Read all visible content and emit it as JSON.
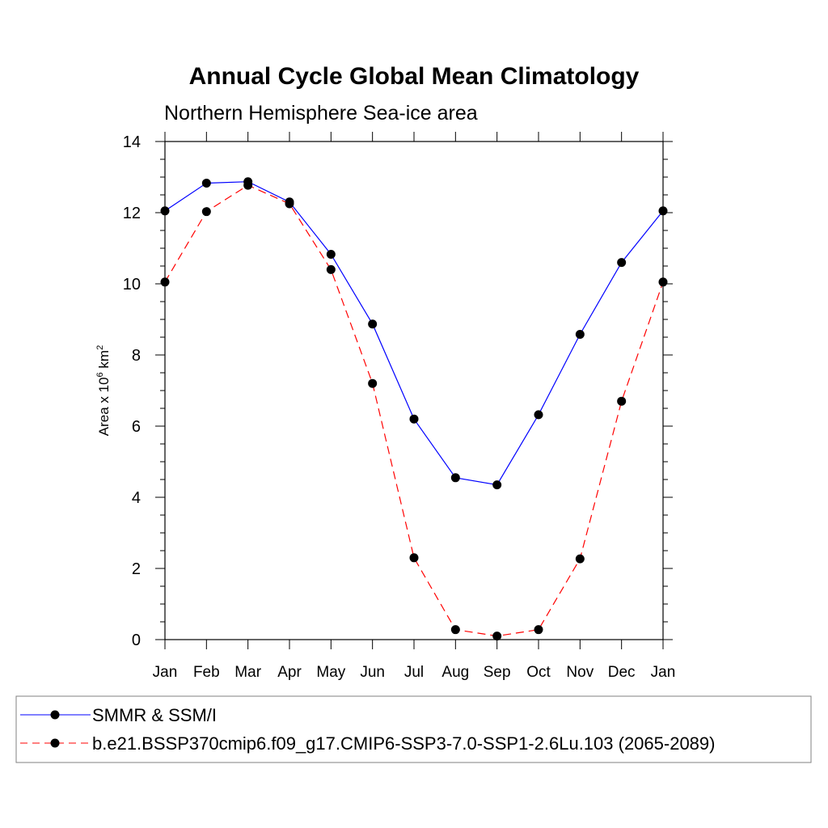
{
  "chart_data": {
    "type": "line",
    "title": "Annual Cycle Global Mean Climatology",
    "subtitle": "Northern Hemisphere Sea-ice area",
    "ylabel_prefix": "Area x 10",
    "ylabel_exp": "6",
    "ylabel_unit": " km",
    "ylabel_unit_exp": "2",
    "categories": [
      "Jan",
      "Feb",
      "Mar",
      "Apr",
      "May",
      "Jun",
      "Jul",
      "Aug",
      "Sep",
      "Oct",
      "Nov",
      "Dec",
      "Jan"
    ],
    "ylim": [
      0,
      14
    ],
    "yticks": [
      0,
      2,
      4,
      6,
      8,
      10,
      12,
      14
    ],
    "series": [
      {
        "name": "SMMR & SSM/I",
        "color": "#0000ff",
        "dash": "solid",
        "values": [
          12.05,
          12.83,
          12.87,
          12.3,
          10.83,
          8.87,
          6.2,
          4.55,
          4.35,
          6.32,
          8.58,
          10.6,
          12.05
        ]
      },
      {
        "name": "b.e21.BSSP370cmip6.f09_g17.CMIP6-SSP3-7.0-SSP1-2.6Lu.103 (2065-2089)",
        "color": "#ff0000",
        "dash": "dashed",
        "values": [
          10.05,
          12.03,
          12.77,
          12.25,
          10.4,
          7.2,
          2.3,
          0.28,
          0.1,
          0.28,
          2.27,
          6.7,
          10.05
        ]
      }
    ],
    "legend_position": "bottom"
  }
}
